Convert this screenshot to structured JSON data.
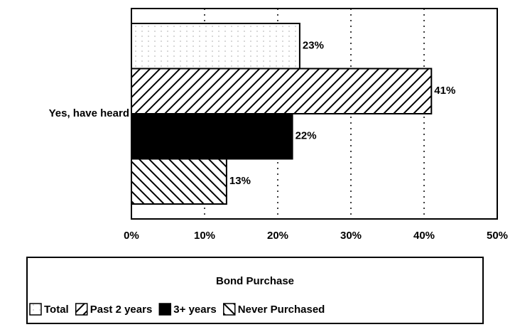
{
  "chart_data": {
    "type": "hbar",
    "categories": [
      "Yes, have heard"
    ],
    "series": [
      {
        "name": "Total",
        "color": "#000000",
        "pattern": "dots",
        "values": [
          23
        ],
        "value_labels": [
          "23%"
        ]
      },
      {
        "name": "Past 2 years",
        "color": "#000000",
        "pattern": "forward-hatch",
        "values": [
          41
        ],
        "value_labels": [
          "41%"
        ]
      },
      {
        "name": "3+ years",
        "color": "#000000",
        "pattern": "solid",
        "values": [
          22
        ],
        "value_labels": [
          "22%"
        ]
      },
      {
        "name": "Never Purchased",
        "color": "#000000",
        "pattern": "back-hatch",
        "values": [
          13
        ],
        "value_labels": [
          "13%"
        ]
      }
    ],
    "legend_title": "Bond Purchase",
    "xlim": [
      0,
      50
    ],
    "xticks": [
      {
        "value": 0,
        "label": "0%"
      },
      {
        "value": 10,
        "label": "10%"
      },
      {
        "value": 20,
        "label": "20%"
      },
      {
        "value": 30,
        "label": "30%"
      },
      {
        "value": 40,
        "label": "40%"
      },
      {
        "value": 50,
        "label": "50%"
      }
    ],
    "grid": true,
    "legend": "bottom"
  }
}
